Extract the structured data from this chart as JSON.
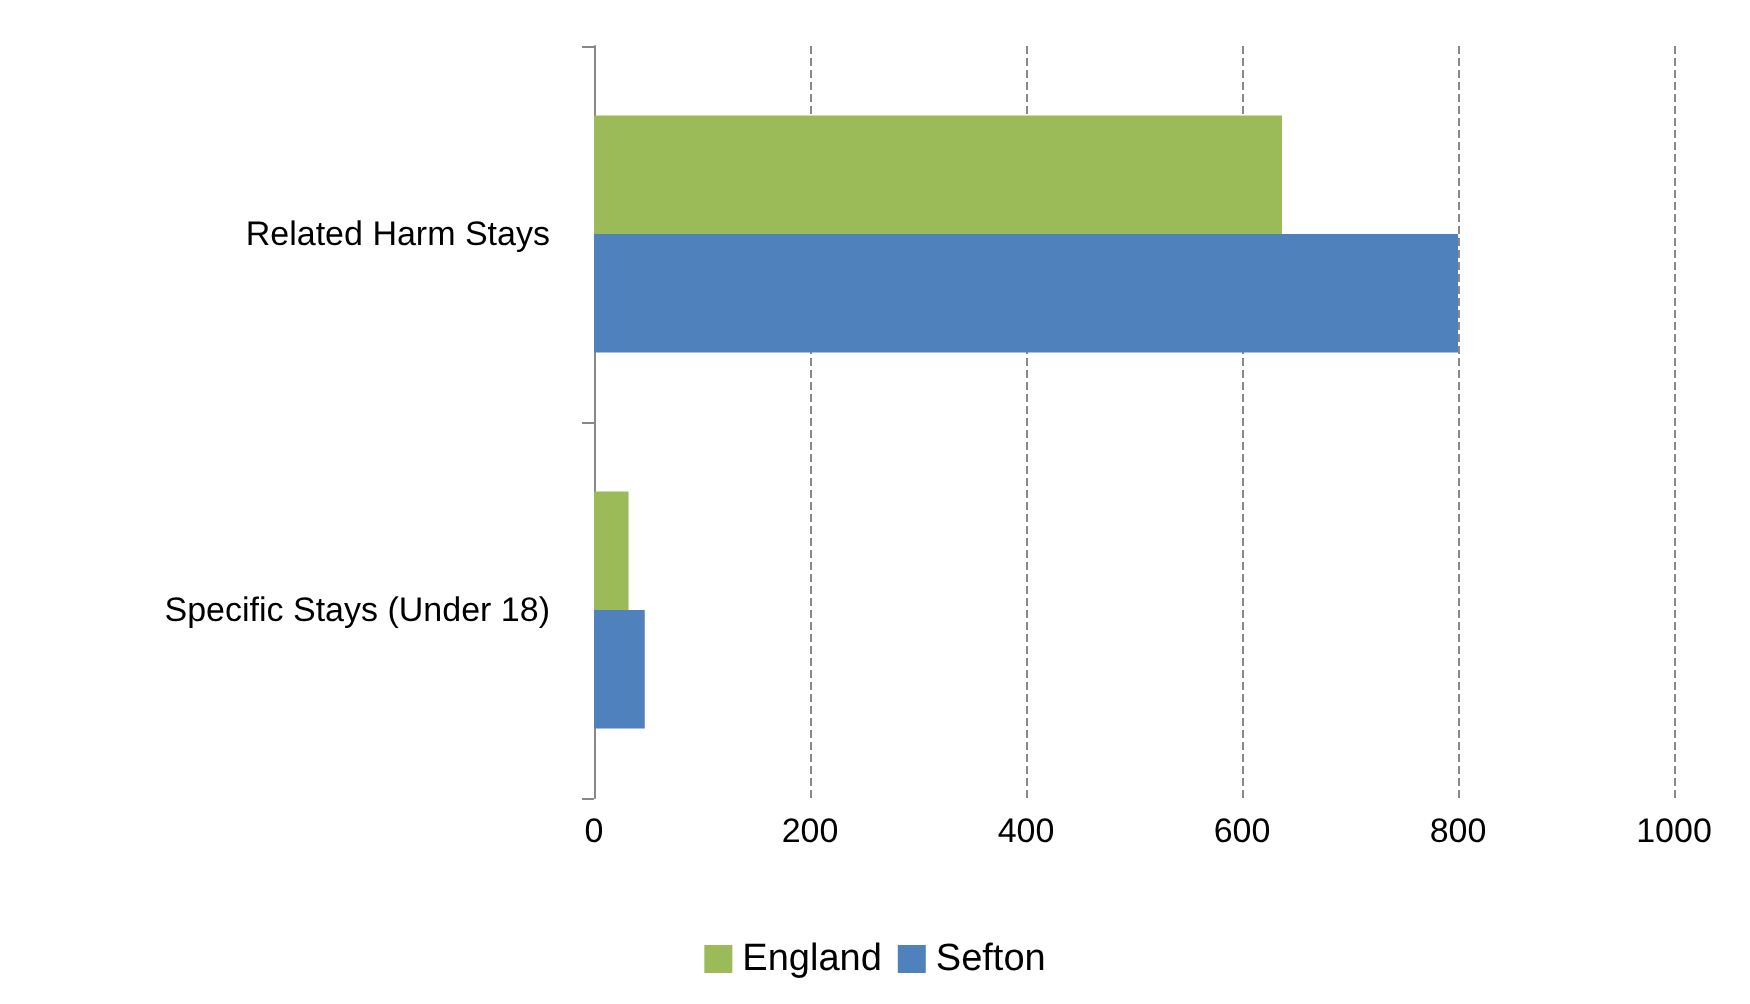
{
  "chart_data": {
    "type": "bar",
    "orientation": "horizontal",
    "categories": [
      "Related Harm Stays",
      "Specific Stays (Under 18)"
    ],
    "series": [
      {
        "name": "England",
        "color": "#9bbb59",
        "values": [
          637,
          32
        ]
      },
      {
        "name": "Sefton",
        "color": "#4f81bd",
        "values": [
          800,
          47
        ]
      }
    ],
    "xlim": [
      0,
      1000
    ],
    "xticks": [
      0,
      200,
      400,
      600,
      800,
      1000
    ],
    "grid": "x",
    "legend": "bottom"
  }
}
